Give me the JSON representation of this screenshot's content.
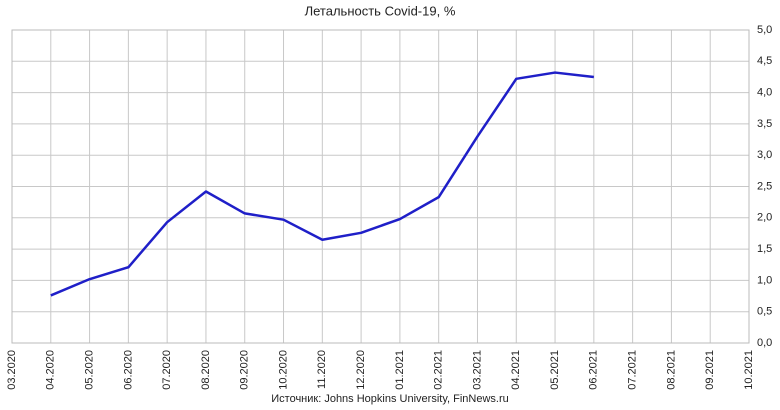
{
  "chart_data": {
    "type": "line",
    "title": "Летальность Covid-19, %",
    "source": "Источник: Johns Hopkins University, FinNews.ru",
    "categories": [
      "03.2020",
      "04.2020",
      "05.2020",
      "06.2020",
      "07.2020",
      "08.2020",
      "09.2020",
      "10.2020",
      "11.2020",
      "12.2020",
      "01.2021",
      "02.2021",
      "03.2021",
      "04.2021",
      "05.2021",
      "06.2021",
      "07.2021",
      "08.2021",
      "09.2021",
      "10.2021"
    ],
    "series": [
      {
        "name": "Летальность Covid-19",
        "color": "#1f1fc8",
        "values": [
          null,
          0.76,
          1.02,
          1.21,
          1.93,
          2.42,
          2.07,
          1.97,
          1.65,
          1.76,
          1.98,
          2.33,
          3.3,
          4.22,
          4.32,
          4.25,
          null,
          null,
          null,
          null
        ]
      }
    ],
    "ylim": [
      0,
      5
    ],
    "yticks": [
      {
        "value": 0,
        "label": "0,0"
      },
      {
        "value": 0.5,
        "label": "0,5"
      },
      {
        "value": 1,
        "label": "1,0"
      },
      {
        "value": 1.5,
        "label": "1,5"
      },
      {
        "value": 2,
        "label": "2,0"
      },
      {
        "value": 2.5,
        "label": "2,5"
      },
      {
        "value": 3,
        "label": "3,0"
      },
      {
        "value": 3.5,
        "label": "3,5"
      },
      {
        "value": 4,
        "label": "4,0"
      },
      {
        "value": 4.5,
        "label": "4,5"
      },
      {
        "value": 5,
        "label": "5,0"
      }
    ],
    "grid": true
  }
}
